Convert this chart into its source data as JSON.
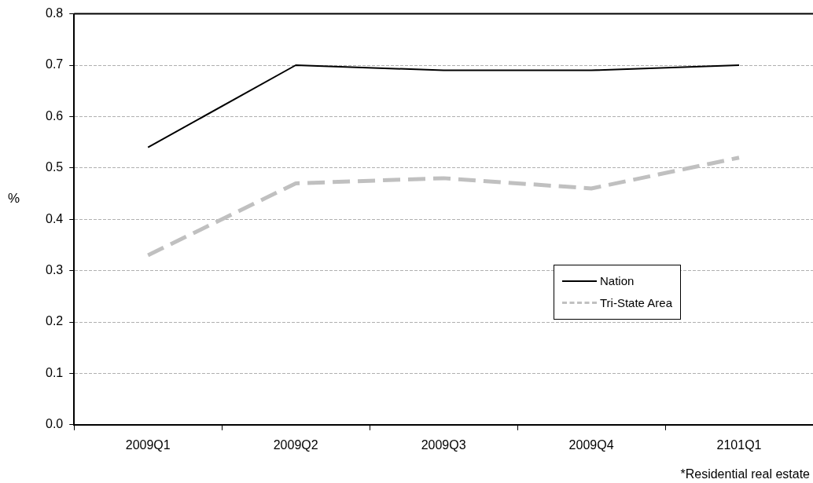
{
  "chart_data": {
    "type": "line",
    "ylabel": "%",
    "categories": [
      "2009Q1",
      "2009Q2",
      "2009Q3",
      "2009Q4",
      "2101Q1"
    ],
    "series": [
      {
        "name": "Nation",
        "color": "#000000",
        "values": [
          0.54,
          0.7,
          0.69,
          0.69,
          0.7
        ],
        "line_style": "solid"
      },
      {
        "name": "Tri-State Area",
        "color": "#c0c0c0",
        "values": [
          0.33,
          0.47,
          0.48,
          0.46,
          0.52
        ],
        "line_style": "dashed"
      }
    ],
    "ylim": [
      0,
      0.8
    ],
    "yticks": [
      {
        "value": 0,
        "label": "0.0"
      },
      0.1,
      0.2,
      0.3,
      0.4,
      0.5,
      0.6,
      0.7,
      0.8
    ],
    "grid": "y",
    "legend": "right",
    "marker": "none",
    "annotations": [
      "*Residential real estate"
    ]
  }
}
